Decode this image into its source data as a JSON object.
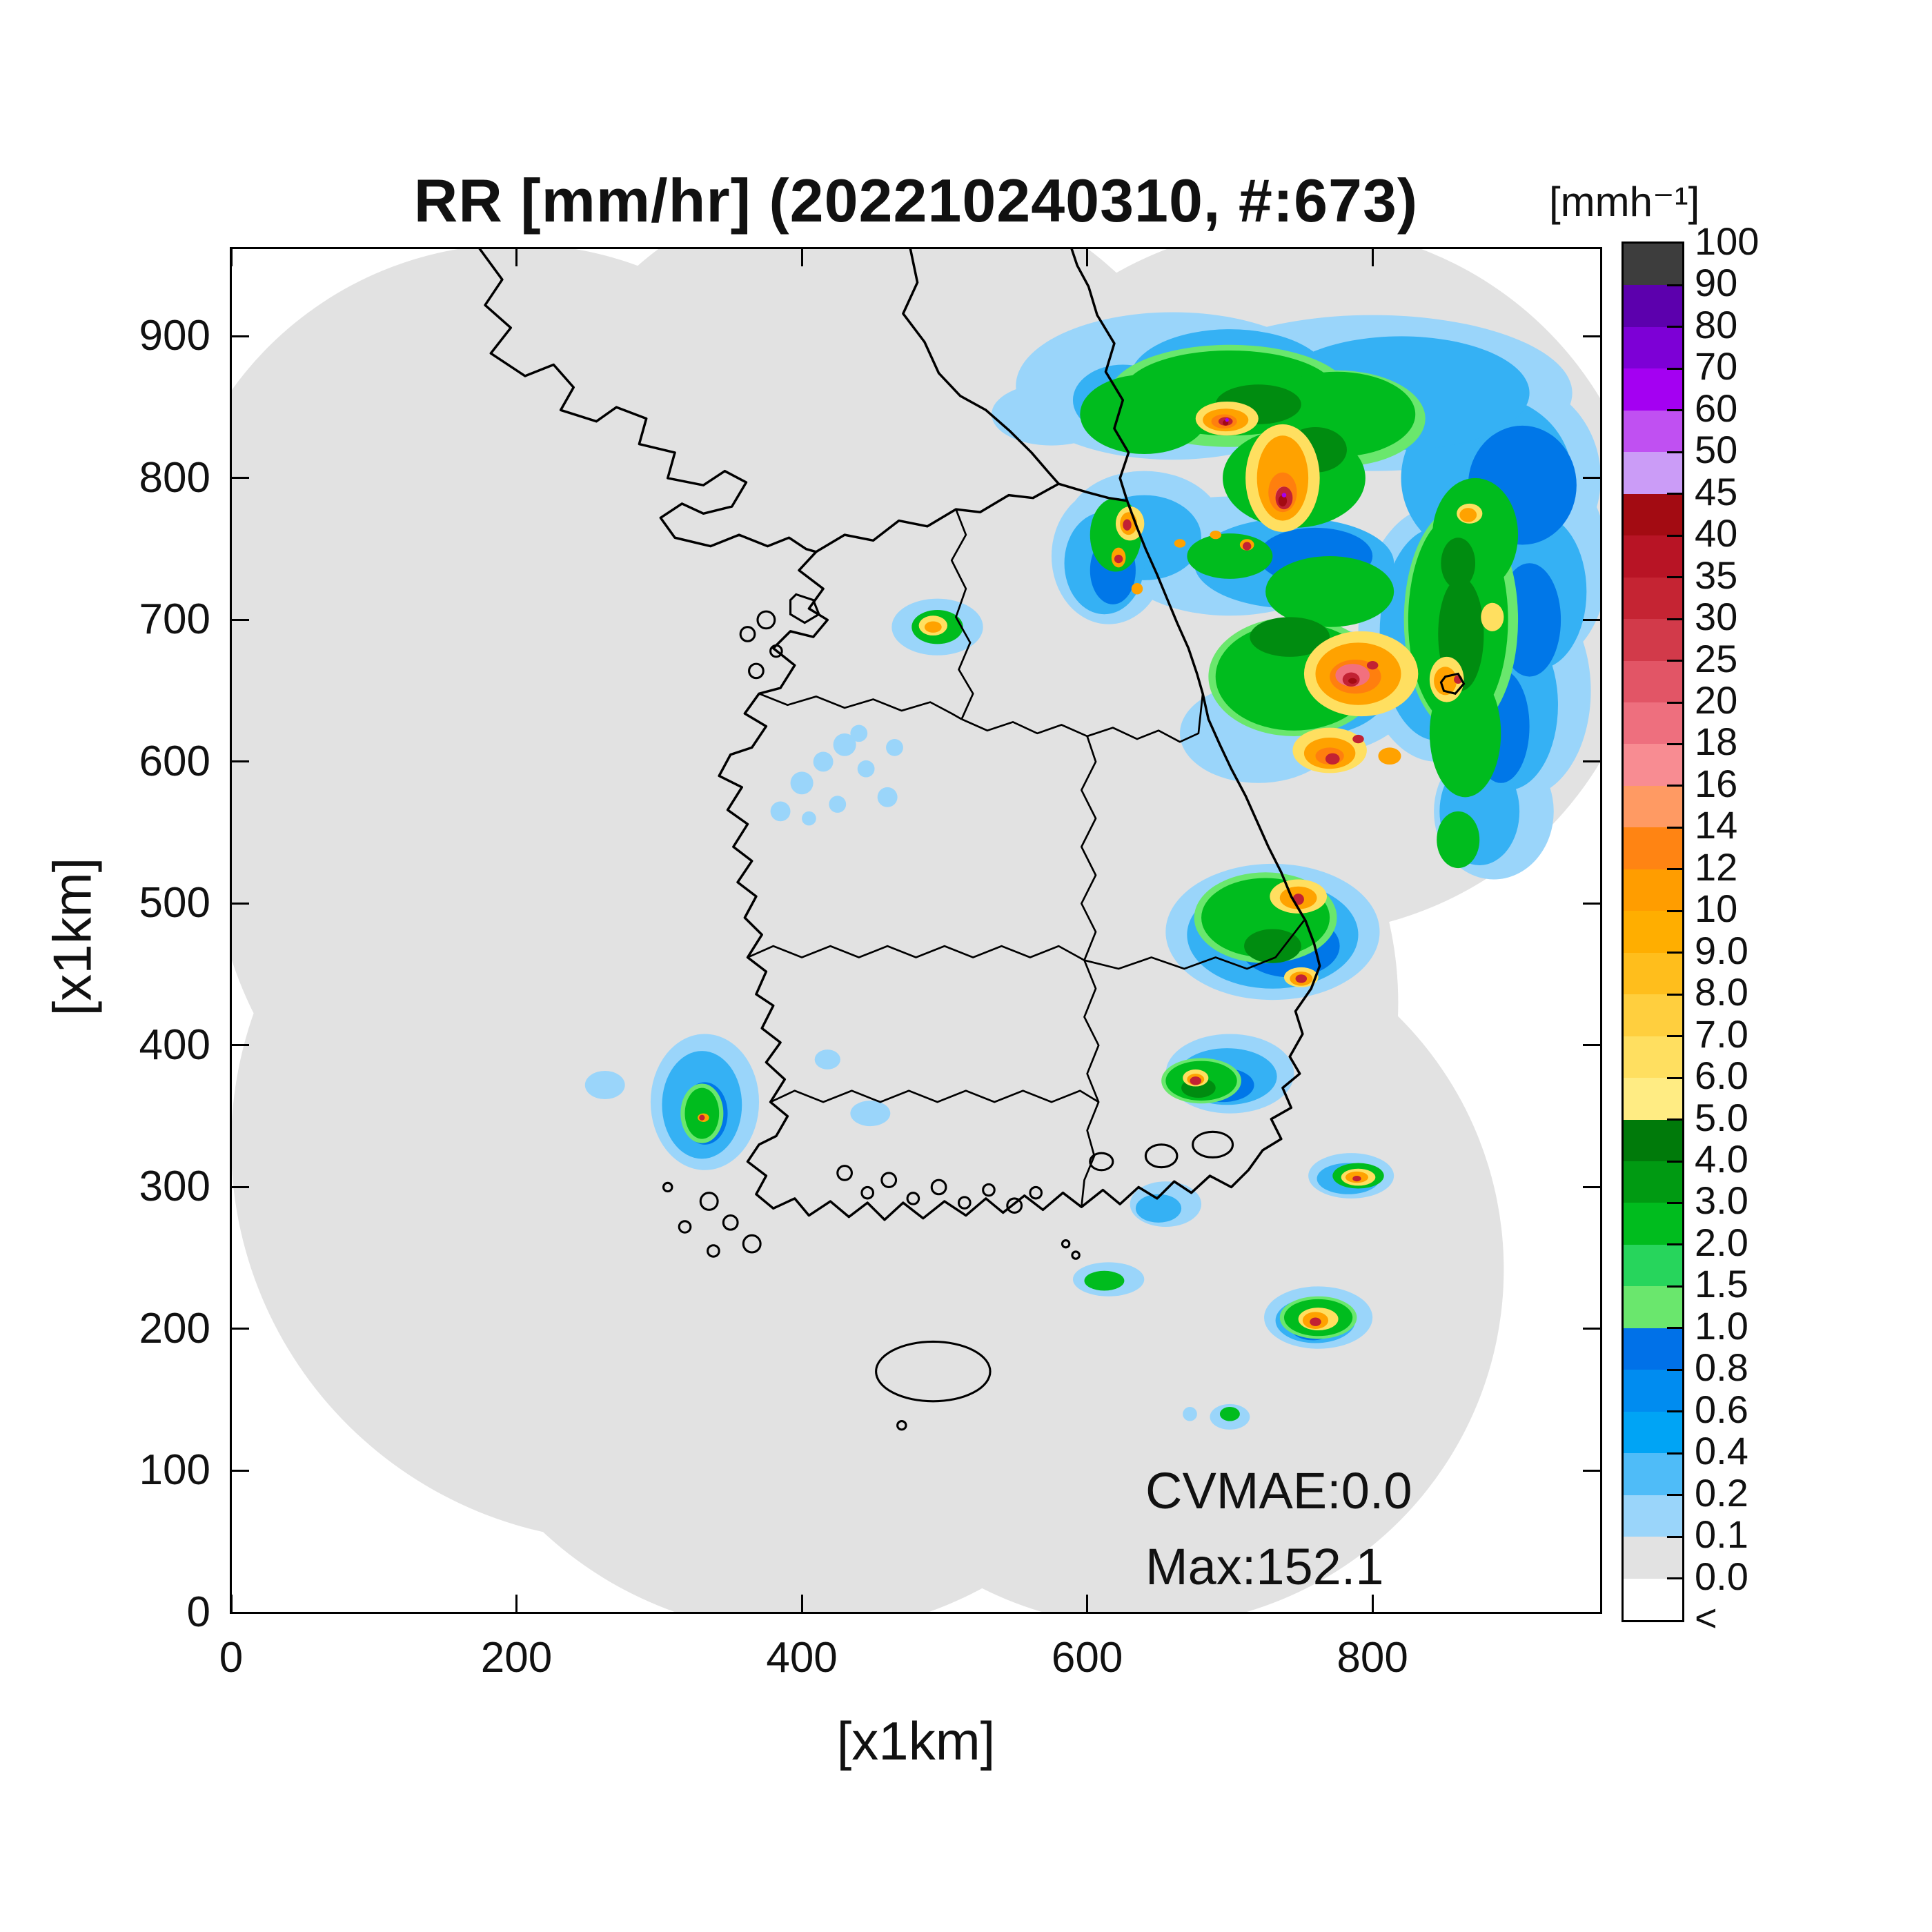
{
  "title": "RR [mm/hr] (202210240310, #:673)",
  "axes": {
    "x_label": "[x1km]",
    "y_label": "[x1km]",
    "x_ticks": [
      "0",
      "200",
      "400",
      "600",
      "800"
    ],
    "x_tick_values": [
      0,
      200,
      400,
      600,
      800
    ],
    "y_ticks": [
      "0",
      "100",
      "200",
      "300",
      "400",
      "500",
      "600",
      "700",
      "800",
      "900"
    ],
    "y_tick_values": [
      0,
      100,
      200,
      300,
      400,
      500,
      600,
      700,
      800,
      900
    ],
    "x_max": 960,
    "y_max": 962
  },
  "colorbar": {
    "unit_label": "[mmh⁻¹]",
    "tick_labels": [
      "100",
      "90",
      "80",
      "70",
      "60",
      "50",
      "45",
      "40",
      "35",
      "30",
      "25",
      "20",
      "18",
      "16",
      "14",
      "12",
      "10",
      "9.0",
      "8.0",
      "7.0",
      "6.0",
      "5.0",
      "4.0",
      "3.0",
      "2.0",
      "1.5",
      "1.0",
      "0.8",
      "0.6",
      "0.4",
      "0.2",
      "0.1",
      "0.0",
      "<"
    ],
    "segment_colors": [
      "#3d3d3d",
      "#5c00ad",
      "#7d00d6",
      "#a400f2",
      "#c050f2",
      "#cb9cf7",
      "#a30b12",
      "#b81425",
      "#c52433",
      "#d23a4a",
      "#e25566",
      "#ee6f7e",
      "#f88c92",
      "#ff9a63",
      "#ff8413",
      "#ff9d00",
      "#ffae00",
      "#ffbe1c",
      "#ffcf3e",
      "#ffdf60",
      "#ffec83",
      "#007a0a",
      "#009a12",
      "#00bc1e",
      "#27d55c",
      "#6ae76d",
      "#0071e8",
      "#008cf0",
      "#00a4f5",
      "#4fbcf8",
      "#9ad5fa",
      "#e2e2e2",
      "#ffffff"
    ]
  },
  "annotations": {
    "cvmae": "CVMAE:0.0",
    "max": "Max:152.1"
  },
  "map": {
    "background": "#ffffff",
    "coverage_color": "#e2e2e2",
    "coastline_color": "#000000"
  },
  "chart_data": {
    "type": "heatmap",
    "title": "RR [mm/hr] (202210240310, #:673)",
    "quantity": "radar rain rate",
    "unit": "mm/hr",
    "timestamp": "202210240310",
    "sample_count_label": "#:673",
    "cvmae": 0.0,
    "max_value": 152.1,
    "xlabel": "[x1km]",
    "ylabel": "[x1km]",
    "x_range": [
      0,
      960
    ],
    "y_range": [
      0,
      960
    ],
    "grid": false,
    "legend_position": "right colorbar",
    "scale_levels_mm_per_hr": [
      0.0,
      0.1,
      0.2,
      0.4,
      0.6,
      0.8,
      1.0,
      1.5,
      2.0,
      3.0,
      4.0,
      5.0,
      6.0,
      7.0,
      8.0,
      9.0,
      10,
      12,
      14,
      16,
      18,
      20,
      25,
      30,
      35,
      40,
      45,
      50,
      60,
      70,
      80,
      90,
      100
    ],
    "scale_colors_low_to_high": [
      "#ffffff",
      "#e2e2e2",
      "#9ad5fa",
      "#4fbcf8",
      "#00a4f5",
      "#008cf0",
      "#0071e8",
      "#6ae76d",
      "#27d55c",
      "#00bc1e",
      "#009a12",
      "#007a0a",
      "#ffec83",
      "#ffdf60",
      "#ffcf3e",
      "#ffbe1c",
      "#ffae00",
      "#ff9d00",
      "#ff8413",
      "#ff9a63",
      "#f88c92",
      "#ee6f7e",
      "#e25566",
      "#d23a4a",
      "#c52433",
      "#b81425",
      "#a30b12",
      "#cb9cf7",
      "#c050f2",
      "#a400f2",
      "#7d00d6",
      "#5c00ad",
      "#3d3d3d"
    ],
    "notable_regions": [
      {
        "area_km": [
          560,
          940,
          560,
          910
        ],
        "desc": "large comma-shaped rain system over the East Sea: green cores 2-5 mm/hr, embedded orange/red cells 10-45 mm/hr, wide blue fringe 0.2-1 mm/hr"
      },
      {
        "area_km": [
          720,
          830,
          630,
          700
        ],
        "desc": "strongest core, salmon/red center ~16-40 mm/hr near (790,660)"
      },
      {
        "area_km": [
          680,
          760,
          770,
          860
        ],
        "desc": "orange convective column ~10-16 mm/hr with red pixels"
      },
      {
        "area_km": [
          590,
          660,
          690,
          800
        ],
        "desc": "small intense cells hugging the east coast, orange/red cores"
      },
      {
        "area_km": [
          660,
          820,
          180,
          540
        ],
        "desc": "scattered small cells south of main system, blue/green with red dots"
      },
      {
        "area_km": [
          290,
          370,
          310,
          410
        ],
        "desc": "southwest sea patch, blue with green core ~1-3 mm/hr"
      },
      {
        "area_km": [
          375,
          475,
          550,
          625
        ],
        "desc": "light blue drizzle speckles near the west coast, 0.1-0.4 mm/hr"
      }
    ]
  }
}
